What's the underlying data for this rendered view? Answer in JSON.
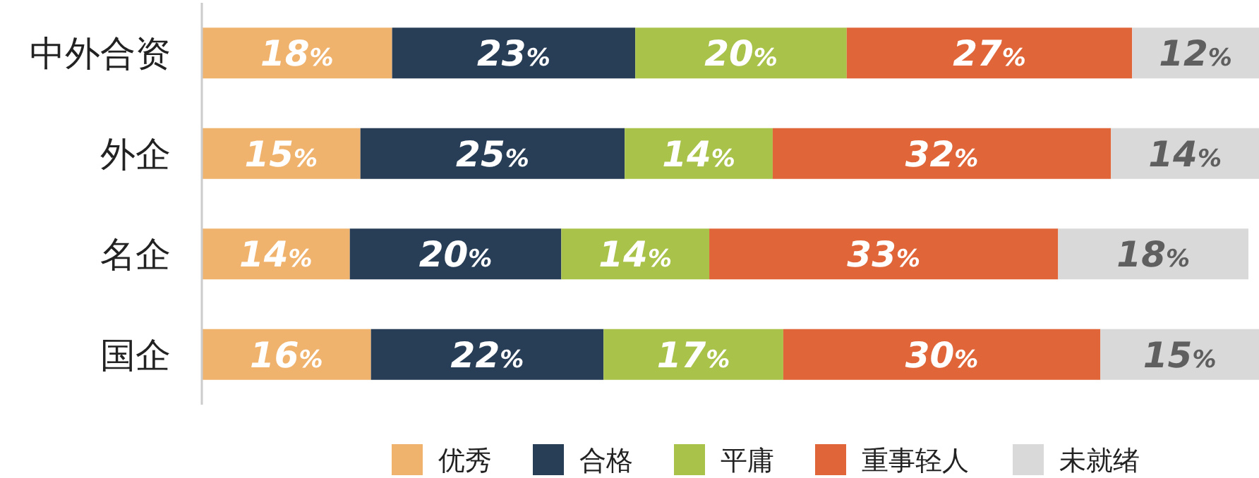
{
  "chart_data": {
    "type": "bar",
    "orientation": "horizontal",
    "stacked": true,
    "categories": [
      "中外合资",
      "外企",
      "名企",
      "国企"
    ],
    "xlim": [
      0,
      100
    ],
    "tick_labels": "y",
    "legend": "bottom",
    "series": [
      {
        "name": "优秀",
        "color": "#f0b36e",
        "values": [
          18,
          15,
          14,
          16
        ],
        "value_labels": [
          "18%",
          "15%",
          "14%",
          "16%"
        ]
      },
      {
        "name": "合格",
        "color": "#283e57",
        "values": [
          23,
          25,
          20,
          22
        ],
        "value_labels": [
          "23%",
          "25%",
          "20%",
          "22%"
        ]
      },
      {
        "name": "平庸",
        "color": "#a9c24a",
        "values": [
          20,
          14,
          14,
          17
        ],
        "value_labels": [
          "20%",
          "14%",
          "14%",
          "17%"
        ]
      },
      {
        "name": "重事轻人",
        "color": "#e0663a",
        "values": [
          27,
          32,
          33,
          30
        ],
        "value_labels": [
          "27%",
          "32%",
          "33%",
          "30%"
        ]
      },
      {
        "name": "未就绪",
        "color": "#d9d9d9",
        "values": [
          12,
          14,
          18,
          15
        ],
        "value_labels": [
          "12%",
          "14%",
          "18%",
          "15%"
        ]
      }
    ]
  }
}
